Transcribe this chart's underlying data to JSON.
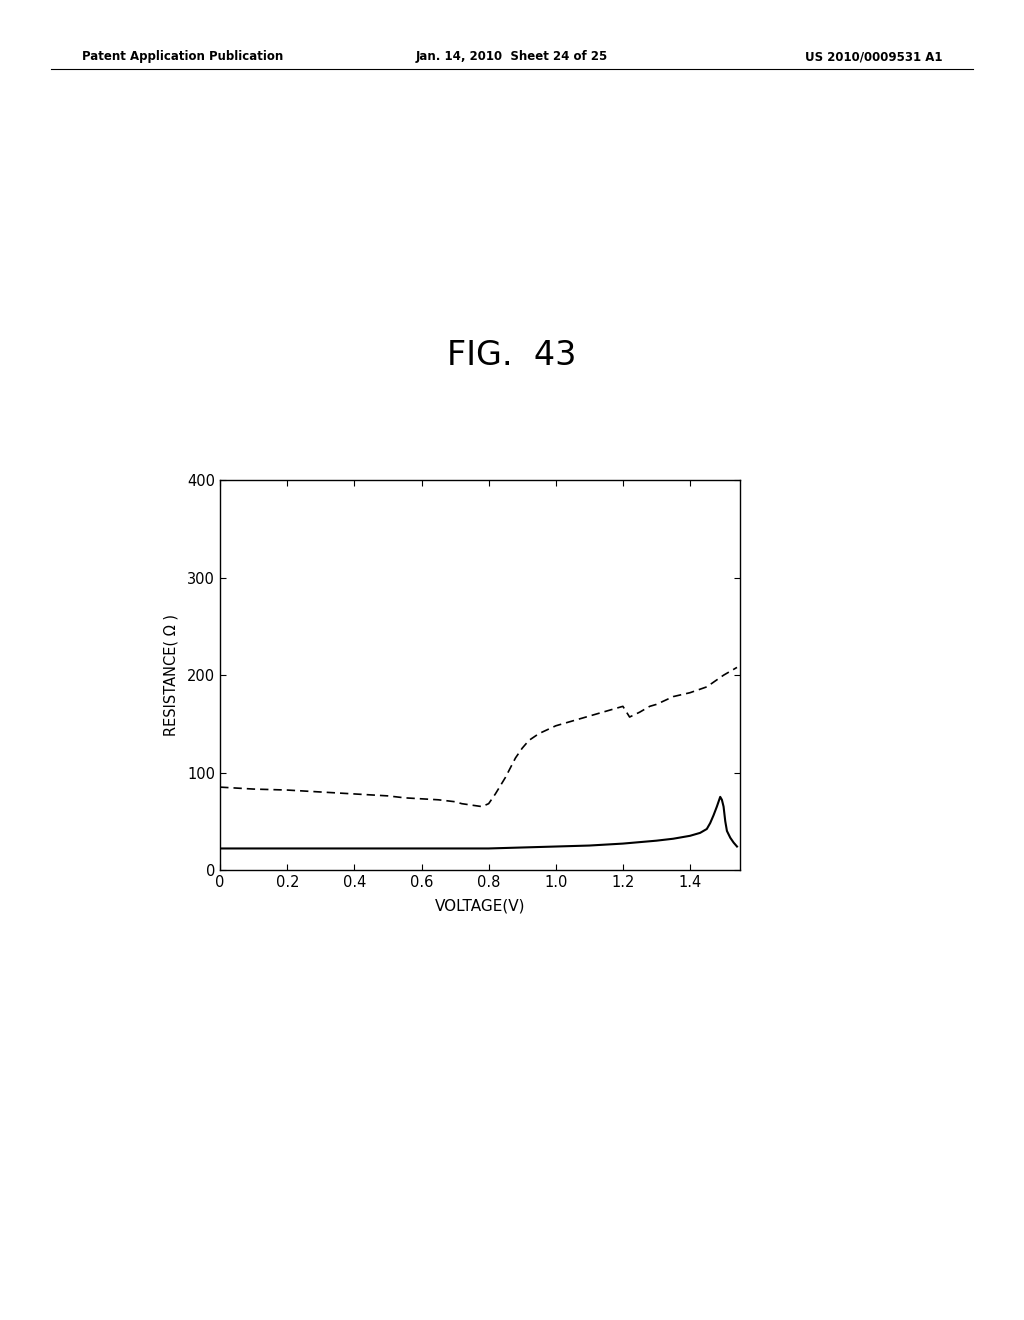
{
  "title": "FIG.  43",
  "xlabel": "VOLTAGE(V)",
  "ylabel": "RESISTANCE( Ω )",
  "xlim": [
    0,
    1.55
  ],
  "ylim": [
    0,
    400
  ],
  "xticks": [
    0,
    0.2,
    0.4,
    0.6,
    0.8,
    1.0,
    1.2,
    1.4
  ],
  "yticks": [
    0,
    100,
    200,
    300,
    400
  ],
  "background_color": "#ffffff",
  "header_left": "Patent Application Publication",
  "header_center": "Jan. 14, 2010  Sheet 24 of 25",
  "header_right": "US 2010/0009531 A1",
  "solid_line_x": [
    0.0,
    0.05,
    0.1,
    0.2,
    0.3,
    0.4,
    0.5,
    0.6,
    0.7,
    0.8,
    0.9,
    1.0,
    1.1,
    1.2,
    1.3,
    1.35,
    1.4,
    1.43,
    1.45,
    1.46,
    1.47,
    1.48,
    1.485,
    1.49,
    1.495,
    1.5,
    1.505,
    1.51,
    1.52,
    1.53,
    1.54
  ],
  "solid_line_y": [
    22,
    22,
    22,
    22,
    22,
    22,
    22,
    22,
    22,
    22,
    23,
    24,
    25,
    27,
    30,
    32,
    35,
    38,
    42,
    48,
    56,
    65,
    70,
    75,
    72,
    65,
    50,
    40,
    33,
    28,
    24
  ],
  "dashed_line_x": [
    0.0,
    0.05,
    0.1,
    0.2,
    0.3,
    0.4,
    0.5,
    0.55,
    0.6,
    0.65,
    0.7,
    0.72,
    0.74,
    0.76,
    0.78,
    0.8,
    0.82,
    0.85,
    0.88,
    0.9,
    0.92,
    0.95,
    1.0,
    1.05,
    1.1,
    1.15,
    1.2,
    1.22,
    1.25,
    1.28,
    1.3,
    1.35,
    1.4,
    1.45,
    1.5,
    1.54
  ],
  "dashed_line_y": [
    85,
    84,
    83,
    82,
    80,
    78,
    76,
    74,
    73,
    72,
    70,
    68,
    67,
    66,
    65,
    68,
    78,
    95,
    115,
    125,
    133,
    140,
    148,
    153,
    158,
    163,
    168,
    157,
    162,
    168,
    170,
    178,
    182,
    188,
    200,
    208
  ]
}
